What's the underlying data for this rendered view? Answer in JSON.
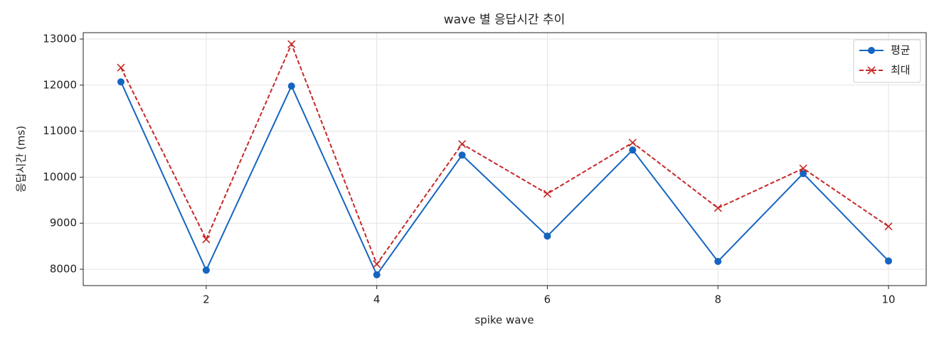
{
  "chart_data": {
    "type": "line",
    "title": "wave 별 응답시간 추이",
    "x_label": "spike wave",
    "y_label": "응답시간 (ms)",
    "x": [
      1,
      2,
      3,
      4,
      5,
      6,
      7,
      8,
      9,
      10
    ],
    "series": [
      {
        "name": "평균",
        "color": "#1565c0",
        "marker": "o",
        "linestyle": "solid",
        "values": [
          12070,
          7980,
          11980,
          7880,
          10480,
          8720,
          10590,
          8170,
          10080,
          8180
        ]
      },
      {
        "name": "최대",
        "color": "#c62828",
        "marker": "x",
        "linestyle": "dashed",
        "values": [
          12380,
          8650,
          12890,
          8110,
          10720,
          9640,
          10750,
          9330,
          10190,
          8930
        ]
      }
    ],
    "xlim": [
      0.558,
      10.442
    ],
    "xticks": [
      2,
      4,
      6,
      8,
      10
    ],
    "ylim": [
      7645,
      13139
    ],
    "yticks": [
      8000,
      9000,
      10000,
      11000,
      12000,
      13000
    ],
    "grid": true,
    "legend": "upper right"
  }
}
